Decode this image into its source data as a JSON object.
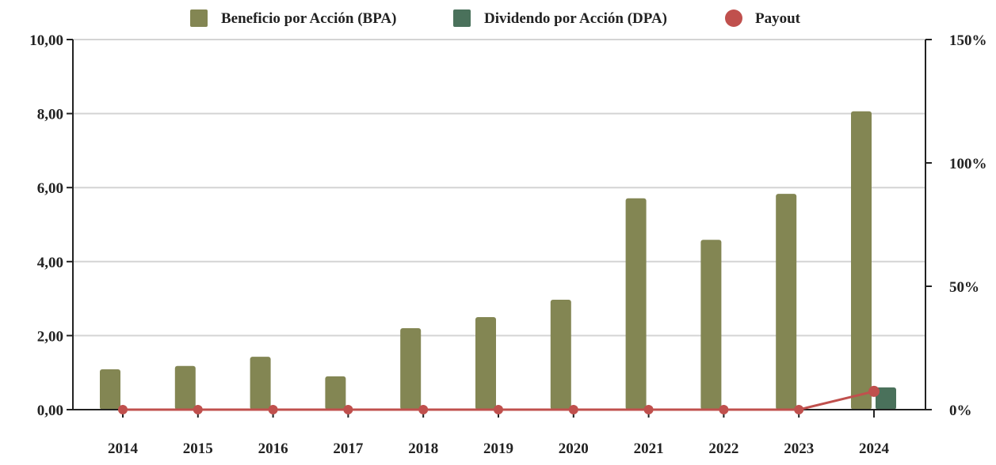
{
  "chart_data": {
    "type": "bar",
    "title": "",
    "categories": [
      "2014",
      "2015",
      "2016",
      "2017",
      "2018",
      "2019",
      "2020",
      "2021",
      "2022",
      "2023",
      "2024"
    ],
    "series": [
      {
        "name": "Beneficio por Acción (BPA)",
        "kind": "bar",
        "axis": "left",
        "color": "#838653",
        "values": [
          1.09,
          1.18,
          1.43,
          0.9,
          2.2,
          2.5,
          2.97,
          5.71,
          4.59,
          5.83,
          8.06
        ]
      },
      {
        "name": "Dividendo por Acción (DPA)",
        "kind": "bar",
        "axis": "left",
        "color": "#4a715b",
        "values": [
          0,
          0,
          0,
          0,
          0,
          0,
          0,
          0,
          0,
          0,
          0.6
        ]
      },
      {
        "name": "Payout",
        "kind": "line",
        "axis": "right",
        "color": "#c0504d",
        "values": [
          0,
          0,
          0,
          0,
          0,
          0,
          0,
          0,
          0,
          0,
          7.4
        ]
      }
    ],
    "y_left": {
      "range": [
        0,
        10
      ],
      "ticks": [
        "0,00",
        "2,00",
        "4,00",
        "6,00",
        "8,00",
        "10,00"
      ]
    },
    "y_right": {
      "range": [
        0,
        150
      ],
      "ticks": [
        "0%",
        "50%",
        "100%",
        "150%"
      ]
    },
    "grid": true,
    "legend": "top"
  }
}
